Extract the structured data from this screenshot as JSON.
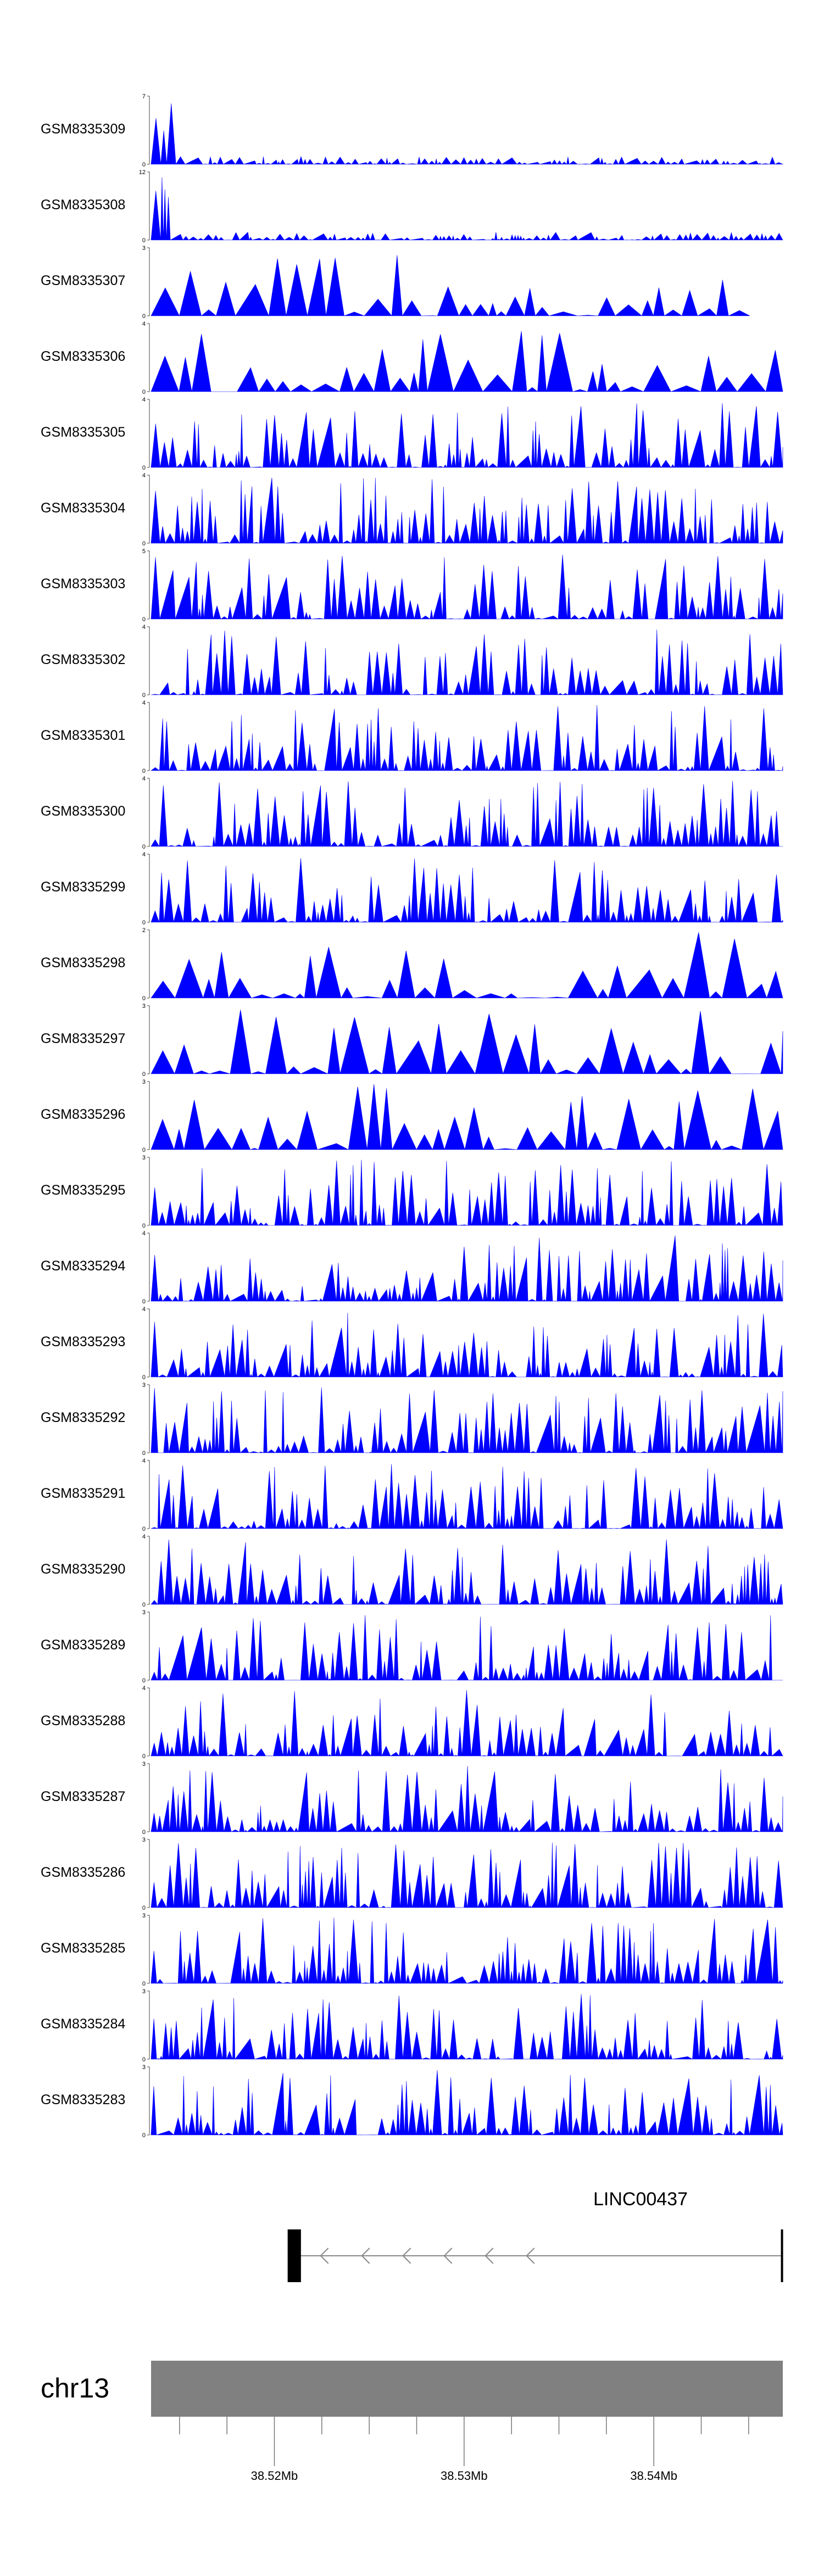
{
  "chart_data": {
    "type": "area",
    "title": "",
    "series_color": "#0000ff",
    "x_axis": {
      "chromosome": "chr13",
      "range_mb": [
        38.5135,
        38.5468
      ],
      "ticks_mb": [
        38.515,
        38.5175,
        38.52,
        38.5225,
        38.525,
        38.5275,
        38.53,
        38.5325,
        38.535,
        38.5375,
        38.54,
        38.5425,
        38.545
      ],
      "labeled_ticks": [
        {
          "value": 38.52,
          "label": "38.52Mb"
        },
        {
          "value": 38.53,
          "label": "38.53Mb"
        },
        {
          "value": 38.54,
          "label": "38.54Mb"
        }
      ]
    },
    "tracks": [
      {
        "name": "GSM8335309",
        "ymax": 7,
        "seed": 309
      },
      {
        "name": "GSM8335308",
        "ymax": 12,
        "seed": 308
      },
      {
        "name": "GSM8335307",
        "ymax": 3,
        "seed": 307
      },
      {
        "name": "GSM8335306",
        "ymax": 4,
        "seed": 306
      },
      {
        "name": "GSM8335305",
        "ymax": 4,
        "seed": 305
      },
      {
        "name": "GSM8335304",
        "ymax": 4,
        "seed": 304
      },
      {
        "name": "GSM8335303",
        "ymax": 5,
        "seed": 303
      },
      {
        "name": "GSM8335302",
        "ymax": 4,
        "seed": 302
      },
      {
        "name": "GSM8335301",
        "ymax": 4,
        "seed": 301
      },
      {
        "name": "GSM8335300",
        "ymax": 4,
        "seed": 300
      },
      {
        "name": "GSM8335299",
        "ymax": 4,
        "seed": 299
      },
      {
        "name": "GSM8335298",
        "ymax": 2,
        "seed": 298
      },
      {
        "name": "GSM8335297",
        "ymax": 3,
        "seed": 297
      },
      {
        "name": "GSM8335296",
        "ymax": 3,
        "seed": 296
      },
      {
        "name": "GSM8335295",
        "ymax": 3,
        "seed": 295
      },
      {
        "name": "GSM8335294",
        "ymax": 4,
        "seed": 294
      },
      {
        "name": "GSM8335293",
        "ymax": 4,
        "seed": 293
      },
      {
        "name": "GSM8335292",
        "ymax": 3,
        "seed": 292
      },
      {
        "name": "GSM8335291",
        "ymax": 4,
        "seed": 291
      },
      {
        "name": "GSM8335290",
        "ymax": 4,
        "seed": 290
      },
      {
        "name": "GSM8335289",
        "ymax": 3,
        "seed": 289
      },
      {
        "name": "GSM8335288",
        "ymax": 4,
        "seed": 288
      },
      {
        "name": "GSM8335287",
        "ymax": 3,
        "seed": 287
      },
      {
        "name": "GSM8335286",
        "ymax": 3,
        "seed": 286
      },
      {
        "name": "GSM8335285",
        "ymax": 3,
        "seed": 285
      },
      {
        "name": "GSM8335284",
        "ymax": 3,
        "seed": 284
      },
      {
        "name": "GSM8335283",
        "ymax": 3,
        "seed": 283
      }
    ],
    "gene": {
      "name": "LINC00437",
      "strand": "-",
      "start_mb": 38.5207,
      "end_mb": 38.5468,
      "exons_mb": [
        [
          38.5207,
          38.5214
        ],
        [
          38.5467,
          38.5468
        ]
      ]
    },
    "chromosome_label": "chr13"
  }
}
